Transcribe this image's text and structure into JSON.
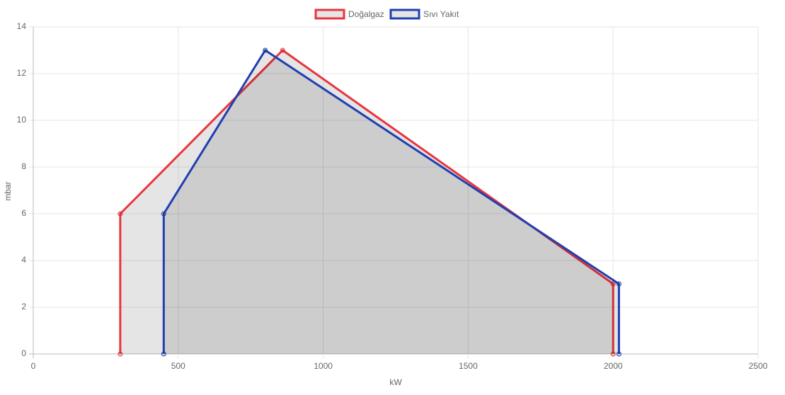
{
  "chart_data": {
    "type": "line",
    "x_label": "kW",
    "y_label": "mbar",
    "xlim": [
      0,
      2500
    ],
    "xticks": [
      0,
      500,
      1000,
      1500,
      2000,
      2500
    ],
    "ylim": [
      0,
      14
    ],
    "yticks": [
      0,
      2,
      4,
      6,
      8,
      10,
      12,
      14
    ],
    "grid": true,
    "fill": "rgba(0,0,0,0.1)",
    "legend": "top",
    "series": [
      {
        "name": "Doğalgaz",
        "color": "#e8353f",
        "x": [
          300,
          300,
          860,
          2000,
          2000
        ],
        "values": [
          0,
          6,
          13,
          3,
          0
        ]
      },
      {
        "name": "Sıvı Yakıt",
        "color": "#1f3fb0",
        "x": [
          450,
          450,
          800,
          2020,
          2020
        ],
        "values": [
          0,
          6,
          13,
          3,
          0
        ]
      }
    ]
  }
}
